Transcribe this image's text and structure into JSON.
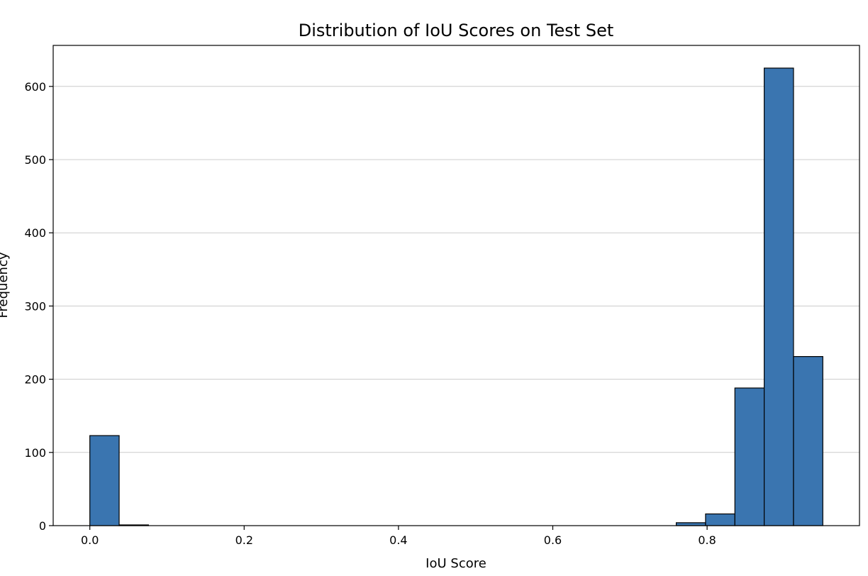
{
  "chart_data": {
    "type": "bar",
    "title": "Distribution of IoU Scores on Test Set",
    "xlabel": "IoU Score",
    "ylabel": "Frequency",
    "xlim": [
      -0.0475,
      0.9975
    ],
    "ylim": [
      0,
      656
    ],
    "xticks": [
      0.0,
      0.2,
      0.4,
      0.6,
      0.8
    ],
    "xtick_labels": [
      "0.0",
      "0.2",
      "0.4",
      "0.6",
      "0.8"
    ],
    "yticks": [
      0,
      100,
      200,
      300,
      400,
      500,
      600
    ],
    "ytick_labels": [
      "0",
      "100",
      "200",
      "300",
      "400",
      "500",
      "600"
    ],
    "grid": "y",
    "bar_color": "#3a75b0",
    "edge_color": "#000000",
    "bins": [
      {
        "x0": 0.0,
        "x1": 0.038,
        "value": 123
      },
      {
        "x0": 0.038,
        "x1": 0.076,
        "value": 1
      },
      {
        "x0": 0.76,
        "x1": 0.798,
        "value": 4
      },
      {
        "x0": 0.798,
        "x1": 0.836,
        "value": 16
      },
      {
        "x0": 0.836,
        "x1": 0.874,
        "value": 188
      },
      {
        "x0": 0.874,
        "x1": 0.912,
        "value": 625
      },
      {
        "x0": 0.912,
        "x1": 0.95,
        "value": 231
      }
    ]
  }
}
